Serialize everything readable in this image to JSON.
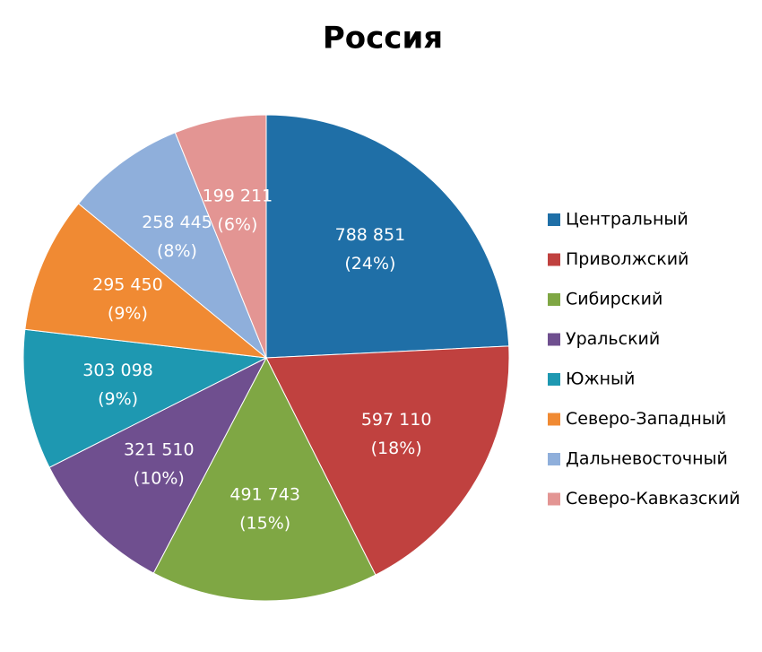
{
  "chart_data": {
    "type": "pie",
    "title": "Россия",
    "categories": [
      "Центральный",
      "Приволжский",
      "Сибирский",
      "Уральский",
      "Южный",
      "Северо-Западный",
      "Дальневосточный",
      "Северо-Кавказский"
    ],
    "values": [
      788851,
      597110,
      491743,
      321510,
      303098,
      295450,
      258445,
      199211
    ],
    "value_labels": [
      "788 851",
      "597 110",
      "491 743",
      "321 510",
      "303 098",
      "295 450",
      "258 445",
      "199 211"
    ],
    "percents": [
      24,
      18,
      15,
      10,
      9,
      9,
      8,
      6
    ],
    "percent_labels": [
      "(24%)",
      "(18%)",
      "(15%)",
      "(10%)",
      "(9%)",
      "(9%)",
      "(8%)",
      "(6%)"
    ],
    "colors": [
      "#1f6fa7",
      "#c0413f",
      "#7fa744",
      "#6f4f8f",
      "#1e98b1",
      "#f08a33",
      "#8fafdb",
      "#e39593"
    ],
    "legend": "right"
  }
}
